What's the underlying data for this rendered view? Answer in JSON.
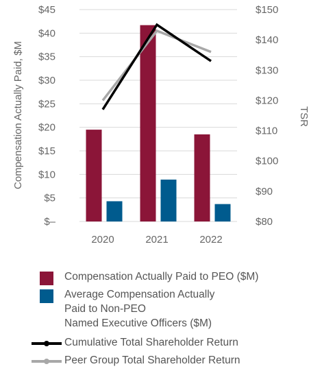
{
  "chart_data": {
    "type": "bar",
    "categories": [
      "2020",
      "2021",
      "2022"
    ],
    "xlabel": "",
    "ylabel": "Compensation Actually Paid, $M",
    "y2label": "TSR",
    "ylim": [
      0,
      45
    ],
    "y2lim": [
      80,
      150
    ],
    "yticks": [
      "$–",
      "$5",
      "$10",
      "$15",
      "$20",
      "$25",
      "$30",
      "$35",
      "$40",
      "$45"
    ],
    "y2ticks": [
      "$80",
      "$90",
      "$100",
      "$110",
      "$120",
      "$130",
      "$140",
      "$150"
    ],
    "bars": [
      {
        "name": "Compensation Actually Paid to PEO ($M)",
        "color": "#8b1538",
        "values": [
          19.5,
          41.7,
          18.5
        ]
      },
      {
        "name": "Average Compensation Actually Paid to Non-PEO Named Executive Officers ($M)",
        "color": "#005b8e",
        "values": [
          4.3,
          8.9,
          3.7
        ]
      }
    ],
    "lines": [
      {
        "name": "Cumulative Total Shareholder Return",
        "color": "#000000",
        "axis": "right",
        "values": [
          117,
          145,
          133
        ]
      },
      {
        "name": "Peer Group Total Shareholder Return",
        "color": "#a8a8a8",
        "axis": "right",
        "values": [
          120,
          143,
          136
        ]
      }
    ],
    "grid": true,
    "legend_position": "bottom"
  },
  "legend": [
    {
      "lines": [
        "Compensation Actually Paid to PEO ($M)"
      ]
    },
    {
      "lines": [
        "Average Compensation Actually",
        "Paid to Non-PEO",
        "Named Executive Officers ($M)"
      ]
    },
    {
      "lines": [
        "Cumulative Total Shareholder Return"
      ]
    },
    {
      "lines": [
        "Peer Group Total Shareholder Return"
      ]
    }
  ]
}
